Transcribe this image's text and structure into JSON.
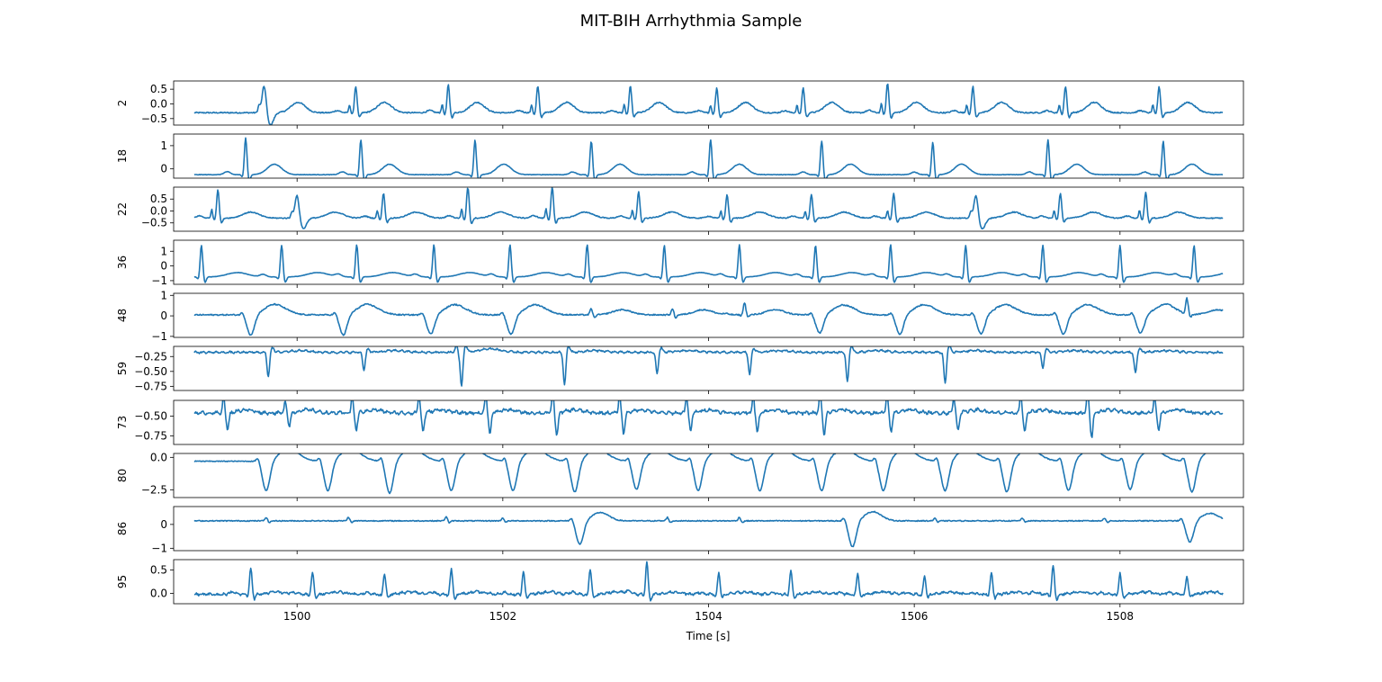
{
  "chart_data": {
    "type": "line",
    "title": "MIT-BIH Arrhythmia Sample",
    "xlabel": "Time [s]",
    "x_range": [
      1499.0,
      1509.0
    ],
    "xlim": [
      1498.8,
      1509.2
    ],
    "x_ticks": [
      1500,
      1502,
      1504,
      1506,
      1508
    ],
    "x_tick_labels": [
      "1500",
      "1502",
      "1504",
      "1506",
      "1508"
    ],
    "grid": false,
    "line_color": "#1f77b4",
    "panels": [
      {
        "ylabel": "2",
        "ylim": [
          -0.72,
          0.78
        ],
        "yticks": [
          0.5,
          0.0,
          -0.5
        ],
        "ytick_labels": [
          "0.5",
          "0.0",
          "−0.5"
        ],
        "baseline": -0.3,
        "beats": [
          {
            "t": 1499.68,
            "shape": "pvc_up",
            "amp": 0.95,
            "notch": 1
          },
          {
            "t": 1500.57,
            "shape": "qrs_up",
            "amp": 0.9,
            "notch": 1
          },
          {
            "t": 1501.47,
            "shape": "qrs_up",
            "amp": 0.95,
            "notch": 1
          },
          {
            "t": 1502.34,
            "shape": "qrs_up",
            "amp": 0.9,
            "notch": 1
          },
          {
            "t": 1503.24,
            "shape": "qrs_up",
            "amp": 0.9,
            "notch": 1
          },
          {
            "t": 1504.08,
            "shape": "qrs_up",
            "amp": 0.85,
            "notch": 1
          },
          {
            "t": 1504.92,
            "shape": "qrs_up",
            "amp": 0.85,
            "notch": 1
          },
          {
            "t": 1505.74,
            "shape": "qrs_up",
            "amp": 1.0,
            "notch": 1
          },
          {
            "t": 1506.57,
            "shape": "qrs_up",
            "amp": 0.9,
            "notch": 1
          },
          {
            "t": 1507.47,
            "shape": "qrs_up",
            "amp": 0.9,
            "notch": 1
          },
          {
            "t": 1508.38,
            "shape": "qrs_up",
            "amp": 0.9,
            "notch": 1
          }
        ],
        "t_amp": 0.35,
        "t_delay": 0.28,
        "t_width": 0.07,
        "noise": 0.02
      },
      {
        "ylabel": "18",
        "ylim": [
          -0.4,
          1.5
        ],
        "yticks": [
          1,
          0
        ],
        "ytick_labels": [
          "1",
          "0"
        ],
        "baseline": -0.25,
        "beats": [
          {
            "t": 1499.5,
            "shape": "qrs_up",
            "amp": 1.6
          },
          {
            "t": 1500.62,
            "shape": "qrs_up",
            "amp": 1.5
          },
          {
            "t": 1501.73,
            "shape": "qrs_up",
            "amp": 1.5
          },
          {
            "t": 1502.86,
            "shape": "qrs_up",
            "amp": 1.45
          },
          {
            "t": 1504.02,
            "shape": "qrs_up",
            "amp": 1.5
          },
          {
            "t": 1505.1,
            "shape": "qrs_up",
            "amp": 1.45
          },
          {
            "t": 1506.18,
            "shape": "qrs_up",
            "amp": 1.4
          },
          {
            "t": 1507.3,
            "shape": "qrs_up",
            "amp": 1.5
          },
          {
            "t": 1508.42,
            "shape": "qrs_up",
            "amp": 1.45
          }
        ],
        "t_amp": 0.45,
        "t_delay": 0.28,
        "t_width": 0.07,
        "noise": 0.01
      },
      {
        "ylabel": "22",
        "ylim": [
          -0.85,
          1.0
        ],
        "yticks": [
          0.5,
          0.0,
          -0.5
        ],
        "ytick_labels": [
          "0.5",
          "0.0",
          "−0.5"
        ],
        "baseline": -0.3,
        "beats": [
          {
            "t": 1499.23,
            "shape": "qrs_up",
            "amp": 1.2,
            "notch": 1
          },
          {
            "t": 1500.0,
            "shape": "pvc_up",
            "amp": 1.0,
            "notch": 1
          },
          {
            "t": 1500.84,
            "shape": "qrs_up",
            "amp": 1.05,
            "notch": 1
          },
          {
            "t": 1501.66,
            "shape": "qrs_up",
            "amp": 1.3,
            "notch": 1
          },
          {
            "t": 1502.48,
            "shape": "qrs_up",
            "amp": 1.3,
            "notch": 1
          },
          {
            "t": 1503.32,
            "shape": "qrs_up",
            "amp": 1.1,
            "notch": 1
          },
          {
            "t": 1504.18,
            "shape": "qrs_up",
            "amp": 1.0,
            "notch": 1
          },
          {
            "t": 1505.0,
            "shape": "qrs_up",
            "amp": 1.0,
            "notch": 1
          },
          {
            "t": 1505.8,
            "shape": "qrs_up",
            "amp": 1.05,
            "notch": 1
          },
          {
            "t": 1506.6,
            "shape": "pvc_up",
            "amp": 1.0,
            "notch": 1
          },
          {
            "t": 1507.42,
            "shape": "qrs_up",
            "amp": 1.05,
            "notch": 1
          },
          {
            "t": 1508.25,
            "shape": "qrs_up",
            "amp": 1.1,
            "notch": 1
          }
        ],
        "t_amp": 0.25,
        "t_delay": 0.32,
        "t_width": 0.08,
        "noise": 0.02
      },
      {
        "ylabel": "36",
        "ylim": [
          -1.25,
          1.75
        ],
        "yticks": [
          1,
          0,
          -1
        ],
        "ytick_labels": [
          "1",
          "0",
          "−1"
        ],
        "baseline": -0.75,
        "beats": [
          {
            "t": 1499.07,
            "shape": "qrs_up",
            "amp": 2.15
          },
          {
            "t": 1499.85,
            "shape": "qrs_up",
            "amp": 2.15
          },
          {
            "t": 1500.58,
            "shape": "qrs_up",
            "amp": 2.2
          },
          {
            "t": 1501.33,
            "shape": "qrs_up",
            "amp": 2.2
          },
          {
            "t": 1502.07,
            "shape": "qrs_up",
            "amp": 2.2
          },
          {
            "t": 1502.82,
            "shape": "qrs_up",
            "amp": 2.2
          },
          {
            "t": 1503.57,
            "shape": "qrs_up",
            "amp": 2.15
          },
          {
            "t": 1504.3,
            "shape": "qrs_up",
            "amp": 2.2
          },
          {
            "t": 1505.04,
            "shape": "qrs_up",
            "amp": 2.15
          },
          {
            "t": 1505.77,
            "shape": "qrs_up",
            "amp": 2.2
          },
          {
            "t": 1506.5,
            "shape": "qrs_up",
            "amp": 2.15
          },
          {
            "t": 1507.25,
            "shape": "qrs_up",
            "amp": 2.15
          },
          {
            "t": 1508.0,
            "shape": "qrs_up",
            "amp": 2.15
          },
          {
            "t": 1508.72,
            "shape": "qrs_up",
            "amp": 2.15
          }
        ],
        "t_amp": 0.3,
        "t_delay": 0.35,
        "t_width": 0.1,
        "noise": 0.01
      },
      {
        "ylabel": "48",
        "ylim": [
          -1.05,
          1.1
        ],
        "yticks": [
          1,
          0,
          -1
        ],
        "ytick_labels": [
          "1",
          "0",
          "−1"
        ],
        "baseline": 0.05,
        "beats": [
          {
            "t": 1499.55,
            "shape": "pvc_dn",
            "amp": 1.0
          },
          {
            "t": 1500.45,
            "shape": "pvc_dn",
            "amp": 1.0
          },
          {
            "t": 1501.3,
            "shape": "pvc_dn",
            "amp": 0.95
          },
          {
            "t": 1502.08,
            "shape": "pvc_dn",
            "amp": 0.95
          },
          {
            "t": 1502.86,
            "shape": "small",
            "amp": 0.3
          },
          {
            "t": 1503.65,
            "shape": "small",
            "amp": 0.3
          },
          {
            "t": 1504.35,
            "shape": "qrs_up",
            "amp": 0.6
          },
          {
            "t": 1505.08,
            "shape": "pvc_dn",
            "amp": 0.9
          },
          {
            "t": 1505.86,
            "shape": "pvc_dn",
            "amp": 0.95
          },
          {
            "t": 1506.65,
            "shape": "pvc_dn",
            "amp": 0.95
          },
          {
            "t": 1507.45,
            "shape": "pvc_dn",
            "amp": 0.95
          },
          {
            "t": 1508.2,
            "shape": "pvc_dn",
            "amp": 0.9
          },
          {
            "t": 1508.65,
            "shape": "qrs_up",
            "amp": 0.75
          }
        ],
        "t_amp": 0.25,
        "t_delay": 0.3,
        "t_width": 0.09,
        "noise": 0.03
      },
      {
        "ylabel": "59",
        "ylim": [
          -0.82,
          -0.08
        ],
        "yticks": [
          -0.25,
          -0.5,
          -0.75
        ],
        "ytick_labels": [
          "−0.25",
          "−0.50",
          "−0.75"
        ],
        "baseline": -0.18,
        "beats": [
          {
            "t": 1499.72,
            "shape": "spike_dn",
            "amp": 0.4
          },
          {
            "t": 1500.65,
            "shape": "spike_dn",
            "amp": 0.3
          },
          {
            "t": 1501.55,
            "shape": "small",
            "amp": 0.12
          },
          {
            "t": 1501.6,
            "shape": "spike_dn",
            "amp": 0.55
          },
          {
            "t": 1502.6,
            "shape": "spike_dn",
            "amp": 0.55
          },
          {
            "t": 1503.5,
            "shape": "spike_dn",
            "amp": 0.35
          },
          {
            "t": 1504.4,
            "shape": "spike_dn",
            "amp": 0.38
          },
          {
            "t": 1505.35,
            "shape": "spike_dn",
            "amp": 0.5
          },
          {
            "t": 1506.3,
            "shape": "spike_dn",
            "amp": 0.52
          },
          {
            "t": 1507.25,
            "shape": "spike_dn",
            "amp": 0.25
          },
          {
            "t": 1508.15,
            "shape": "spike_dn",
            "amp": 0.35
          }
        ],
        "t_amp": 0.03,
        "t_delay": 0.3,
        "t_width": 0.1,
        "noise": 0.012,
        "ripple": 0.01
      },
      {
        "ylabel": "73",
        "ylim": [
          -0.86,
          -0.3
        ],
        "yticks": [
          -0.5,
          -0.75
        ],
        "ytick_labels": [
          "−0.50",
          "−0.75"
        ],
        "baseline": -0.46,
        "beats": [
          {
            "t": 1499.3,
            "shape": "biphasic",
            "amp": 0.2
          },
          {
            "t": 1499.9,
            "shape": "biphasic",
            "amp": 0.15
          },
          {
            "t": 1500.55,
            "shape": "biphasic",
            "amp": 0.2
          },
          {
            "t": 1501.2,
            "shape": "biphasic",
            "amp": 0.22
          },
          {
            "t": 1501.85,
            "shape": "biphasic",
            "amp": 0.24
          },
          {
            "t": 1502.5,
            "shape": "biphasic",
            "amp": 0.26
          },
          {
            "t": 1503.15,
            "shape": "biphasic",
            "amp": 0.24
          },
          {
            "t": 1503.8,
            "shape": "biphasic",
            "amp": 0.22
          },
          {
            "t": 1504.45,
            "shape": "biphasic",
            "amp": 0.22
          },
          {
            "t": 1505.1,
            "shape": "biphasic",
            "amp": 0.26
          },
          {
            "t": 1505.75,
            "shape": "biphasic",
            "amp": 0.22
          },
          {
            "t": 1506.4,
            "shape": "biphasic",
            "amp": 0.2
          },
          {
            "t": 1507.05,
            "shape": "biphasic",
            "amp": 0.22
          },
          {
            "t": 1507.7,
            "shape": "biphasic",
            "amp": 0.28
          },
          {
            "t": 1508.35,
            "shape": "biphasic",
            "amp": 0.2
          }
        ],
        "t_amp": 0.04,
        "t_delay": 0.2,
        "t_width": 0.08,
        "noise": 0.015,
        "ripple": 0.012
      },
      {
        "ylabel": "80",
        "ylim": [
          -3.1,
          0.3
        ],
        "yticks": [
          0.0,
          -2.5
        ],
        "ytick_labels": [
          "0.0",
          "−2.5"
        ],
        "baseline": -0.3,
        "beats": [
          {
            "t": 1499.7,
            "shape": "pvc_dn",
            "amp": 2.3
          },
          {
            "t": 1500.3,
            "shape": "pvc_dn",
            "amp": 2.3
          },
          {
            "t": 1500.9,
            "shape": "pvc_dn",
            "amp": 2.5
          },
          {
            "t": 1501.5,
            "shape": "pvc_dn",
            "amp": 2.3
          },
          {
            "t": 1502.1,
            "shape": "pvc_dn",
            "amp": 2.3
          },
          {
            "t": 1502.7,
            "shape": "pvc_dn",
            "amp": 2.4
          },
          {
            "t": 1503.3,
            "shape": "pvc_dn",
            "amp": 2.2
          },
          {
            "t": 1503.9,
            "shape": "pvc_dn",
            "amp": 2.3
          },
          {
            "t": 1504.5,
            "shape": "pvc_dn",
            "amp": 2.3
          },
          {
            "t": 1505.1,
            "shape": "pvc_dn",
            "amp": 2.3
          },
          {
            "t": 1505.7,
            "shape": "pvc_dn",
            "amp": 2.3
          },
          {
            "t": 1506.3,
            "shape": "pvc_dn",
            "amp": 2.3
          },
          {
            "t": 1506.9,
            "shape": "pvc_dn",
            "amp": 2.4
          },
          {
            "t": 1507.5,
            "shape": "pvc_dn",
            "amp": 2.3
          },
          {
            "t": 1508.1,
            "shape": "pvc_dn",
            "amp": 2.2
          },
          {
            "t": 1508.7,
            "shape": "pvc_dn",
            "amp": 2.4
          }
        ],
        "t_amp": 0.3,
        "t_delay": 0.3,
        "t_width": 0.09,
        "noise": 0.03
      },
      {
        "ylabel": "86",
        "ylim": [
          -1.1,
          0.75
        ],
        "yticks": [
          0,
          -1
        ],
        "ytick_labels": [
          "0",
          "−1"
        ],
        "baseline": 0.15,
        "beats": [
          {
            "t": 1499.7,
            "shape": "small",
            "amp": 0.15
          },
          {
            "t": 1500.5,
            "shape": "small",
            "amp": 0.15
          },
          {
            "t": 1501.45,
            "shape": "small",
            "amp": 0.18
          },
          {
            "t": 1502.0,
            "shape": "small",
            "amp": 0.12
          },
          {
            "t": 1502.75,
            "shape": "pvc_dn",
            "amp": 1.0
          },
          {
            "t": 1503.6,
            "shape": "small",
            "amp": 0.15
          },
          {
            "t": 1504.3,
            "shape": "small",
            "amp": 0.15
          },
          {
            "t": 1505.4,
            "shape": "pvc_dn",
            "amp": 1.1
          },
          {
            "t": 1506.2,
            "shape": "small",
            "amp": 0.12
          },
          {
            "t": 1507.05,
            "shape": "small",
            "amp": 0.12
          },
          {
            "t": 1507.85,
            "shape": "small",
            "amp": 0.12
          },
          {
            "t": 1508.68,
            "shape": "pvc_dn",
            "amp": 0.9
          }
        ],
        "t_amp": 0.0,
        "t_delay": 0.3,
        "t_width": 0.09,
        "noise": 0.02
      },
      {
        "ylabel": "95",
        "ylim": [
          -0.22,
          0.72
        ],
        "yticks": [
          0.5,
          0.0
        ],
        "ytick_labels": [
          "0.5",
          "0.0"
        ],
        "baseline": -0.02,
        "beats": [
          {
            "t": 1499.55,
            "shape": "qrs_up",
            "amp": 0.55
          },
          {
            "t": 1500.15,
            "shape": "qrs_up",
            "amp": 0.45
          },
          {
            "t": 1500.85,
            "shape": "qrs_up",
            "amp": 0.45
          },
          {
            "t": 1501.5,
            "shape": "qrs_up",
            "amp": 0.55
          },
          {
            "t": 1502.2,
            "shape": "qrs_up",
            "amp": 0.5
          },
          {
            "t": 1502.85,
            "shape": "qrs_up",
            "amp": 0.55
          },
          {
            "t": 1503.4,
            "shape": "qrs_up",
            "amp": 0.7
          },
          {
            "t": 1504.1,
            "shape": "qrs_up",
            "amp": 0.45
          },
          {
            "t": 1504.8,
            "shape": "qrs_up",
            "amp": 0.5
          },
          {
            "t": 1505.45,
            "shape": "qrs_up",
            "amp": 0.45
          },
          {
            "t": 1506.1,
            "shape": "qrs_up",
            "amp": 0.4
          },
          {
            "t": 1506.75,
            "shape": "qrs_up",
            "amp": 0.45
          },
          {
            "t": 1507.35,
            "shape": "qrs_up",
            "amp": 0.6
          },
          {
            "t": 1508.0,
            "shape": "qrs_up",
            "amp": 0.45
          },
          {
            "t": 1508.65,
            "shape": "qrs_up",
            "amp": 0.4
          }
        ],
        "t_amp": 0.05,
        "t_delay": 0.25,
        "t_width": 0.08,
        "noise": 0.02,
        "ripple": 0.015
      }
    ]
  }
}
